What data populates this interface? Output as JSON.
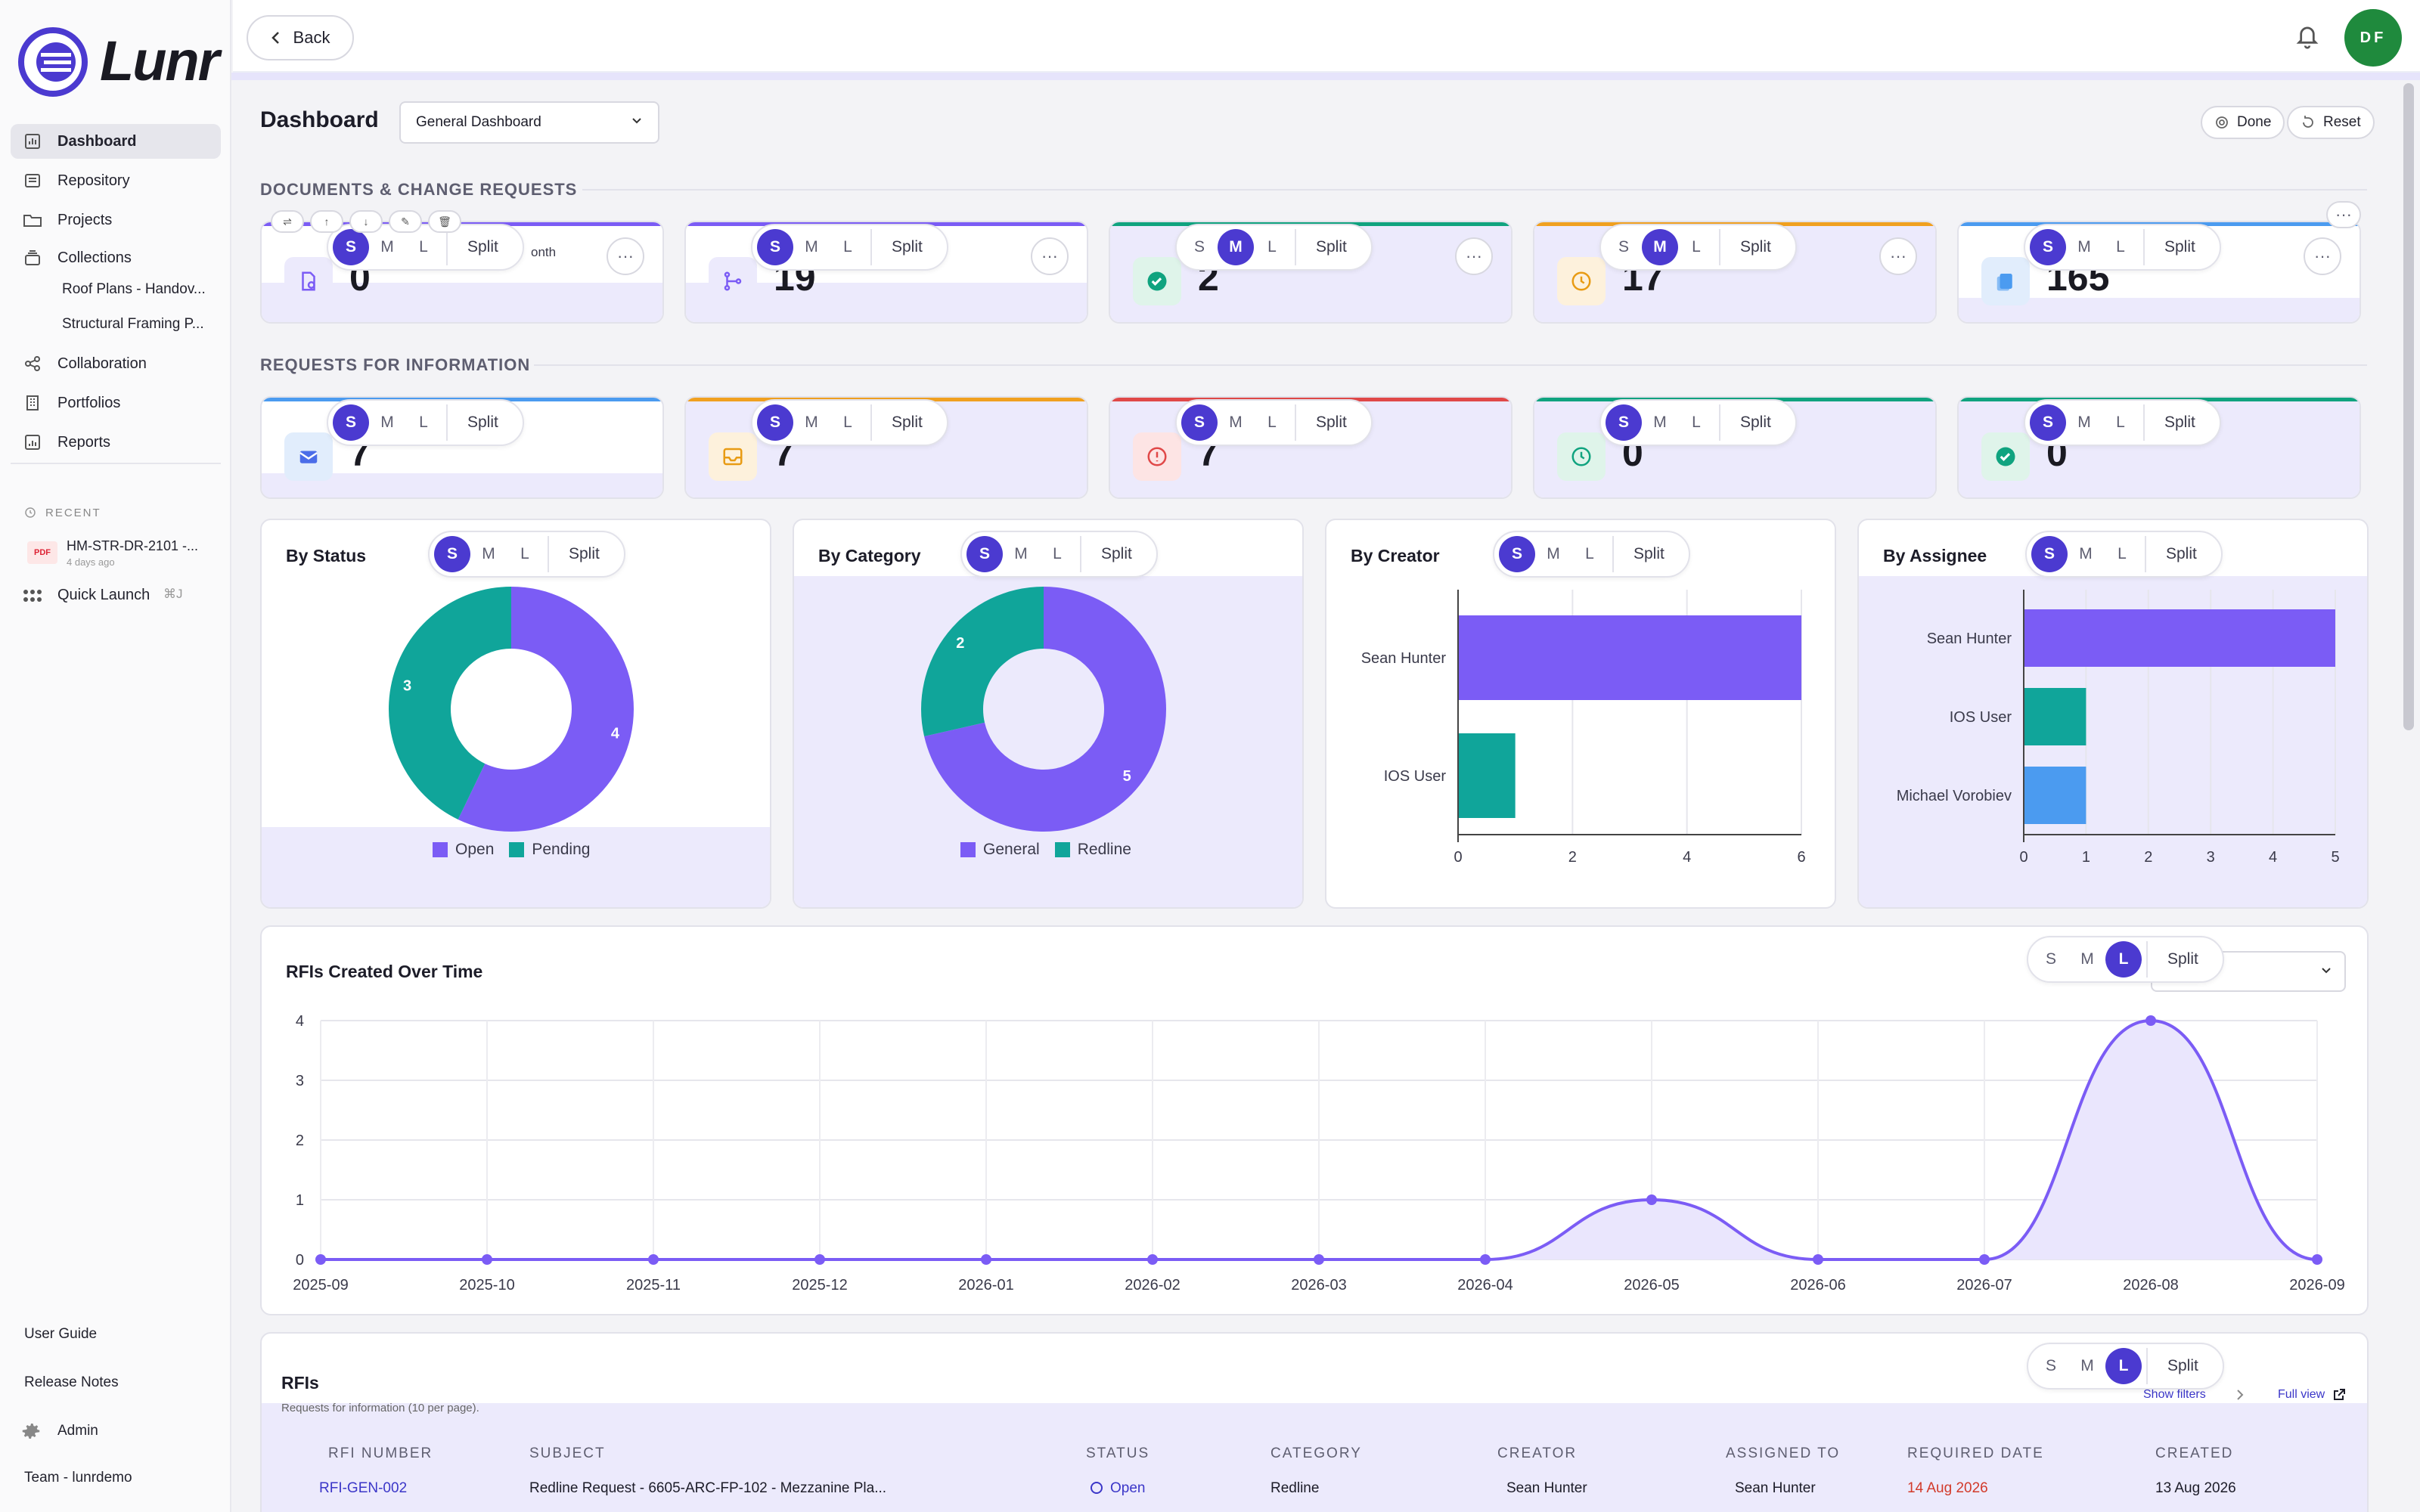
{
  "app": {
    "brand": "Lunr",
    "accent": "#4b3ad0"
  },
  "sidebar": {
    "items": [
      {
        "label": "Dashboard",
        "icon": "chart-icon",
        "active": true
      },
      {
        "label": "Repository",
        "icon": "archive-icon"
      },
      {
        "label": "Projects",
        "icon": "folder-icon"
      },
      {
        "label": "Collections",
        "icon": "collection-icon"
      },
      {
        "label": "Collaboration",
        "icon": "share-icon"
      },
      {
        "label": "Portfolios",
        "icon": "building-icon"
      },
      {
        "label": "Reports",
        "icon": "report-icon"
      }
    ],
    "collections": [
      "Roof Plans - Handov...",
      "Structural Framing P..."
    ],
    "recent_label": "RECENT",
    "recent_item": {
      "name": "HM-STR-DR-2101 -...",
      "time": "4 days ago",
      "badge": "PDF"
    },
    "quick_launch": {
      "label": "Quick Launch",
      "shortcut": "⌘J"
    },
    "footer": {
      "user_guide": "User Guide",
      "release_notes": "Release Notes",
      "admin": "Admin",
      "team": "Team - lunrdemo"
    }
  },
  "topbar": {
    "back_label": "Back",
    "avatar_initials": "DF"
  },
  "dashboard": {
    "title": "Dashboard",
    "selector_value": "General Dashboard",
    "done_label": "Done",
    "reset_label": "Reset"
  },
  "size_control": {
    "s": "S",
    "m": "M",
    "l": "L",
    "split": "Split"
  },
  "sections": {
    "docs": "DOCUMENTS & CHANGE REQUESTS",
    "rfi": "REQUESTS FOR INFORMATION"
  },
  "doc_cards": [
    {
      "value": "0",
      "partial_label": "onth",
      "accent": "#7b5cf5",
      "size": "S"
    },
    {
      "value": "19",
      "accent": "#7b5cf5",
      "size": "S"
    },
    {
      "value": "2",
      "accent": "#10a37f",
      "size": "M"
    },
    {
      "value": "17",
      "accent": "#f0a020",
      "size": "M"
    },
    {
      "value": "165",
      "accent": "#4b9bf0",
      "size": "S"
    }
  ],
  "rfi_cards": [
    {
      "value": "7",
      "accent": "#4b9bf0",
      "size": "S"
    },
    {
      "value": "7",
      "accent": "#f0a020",
      "size": "S"
    },
    {
      "value": "7",
      "accent": "#e04848",
      "size": "S"
    },
    {
      "value": "0",
      "accent": "#10a37f",
      "size": "S"
    },
    {
      "value": "0",
      "accent": "#10a37f",
      "size": "S"
    }
  ],
  "charts": {
    "by_status": {
      "title": "By Status"
    },
    "by_category": {
      "title": "By Category"
    },
    "by_creator": {
      "title": "By Creator"
    },
    "by_assignee": {
      "title": "By Assignee"
    },
    "over_time": {
      "title": "RFIs Created Over Time"
    }
  },
  "chart_data": [
    {
      "type": "pie",
      "title": "By Status",
      "categories": [
        "Open",
        "Pending"
      ],
      "values": [
        4,
        3
      ],
      "colors": [
        "#7b5cf5",
        "#10a59a"
      ]
    },
    {
      "type": "pie",
      "title": "By Category",
      "categories": [
        "General",
        "Redline"
      ],
      "values": [
        5,
        2
      ],
      "colors": [
        "#7b5cf5",
        "#10a59a"
      ]
    },
    {
      "type": "bar",
      "orientation": "horizontal",
      "title": "By Creator",
      "categories": [
        "Sean Hunter",
        "IOS User"
      ],
      "values": [
        6,
        1
      ],
      "colors": [
        "#7b5cf5",
        "#10a59a"
      ],
      "xlim": [
        0,
        6
      ],
      "xticks": [
        0,
        2,
        4,
        6
      ]
    },
    {
      "type": "bar",
      "orientation": "horizontal",
      "title": "By Assignee",
      "categories": [
        "Sean Hunter",
        "IOS User",
        "Michael Vorobiev"
      ],
      "values": [
        5,
        1,
        1
      ],
      "colors": [
        "#7b5cf5",
        "#10a59a",
        "#4b9bf0"
      ],
      "xlim": [
        0,
        5
      ],
      "xticks": [
        0,
        1,
        2,
        3,
        4,
        5
      ]
    },
    {
      "type": "area",
      "title": "RFIs Created Over Time",
      "x": [
        "2025-09",
        "2025-10",
        "2025-11",
        "2025-12",
        "2026-01",
        "2026-02",
        "2026-03",
        "2026-04",
        "2026-05",
        "2026-06",
        "2026-07",
        "2026-08",
        "2026-09"
      ],
      "values": [
        0,
        0,
        0,
        0,
        0,
        0,
        0,
        0,
        1,
        0,
        0,
        4,
        0
      ],
      "ylim": [
        0,
        4
      ],
      "yticks": [
        0,
        1,
        2,
        3,
        4
      ],
      "color": "#7b5cf5"
    }
  ],
  "rfi_table": {
    "title": "RFIs",
    "subtitle": "Requests for information (10 per page).",
    "show_filters": "Show filters",
    "full_view": "Full view",
    "columns": [
      "RFI NUMBER",
      "SUBJECT",
      "STATUS",
      "CATEGORY",
      "CREATOR",
      "ASSIGNED TO",
      "REQUIRED DATE",
      "CREATED"
    ],
    "rows": [
      {
        "number": "RFI-GEN-002",
        "subject": "Redline Request - 6605-ARC-FP-102 - Mezzanine Pla...",
        "status": "Open",
        "category": "Redline",
        "creator": "Sean Hunter",
        "assigned": "Sean Hunter",
        "required": "14 Aug 2026",
        "created": "13 Aug 2026"
      }
    ]
  }
}
